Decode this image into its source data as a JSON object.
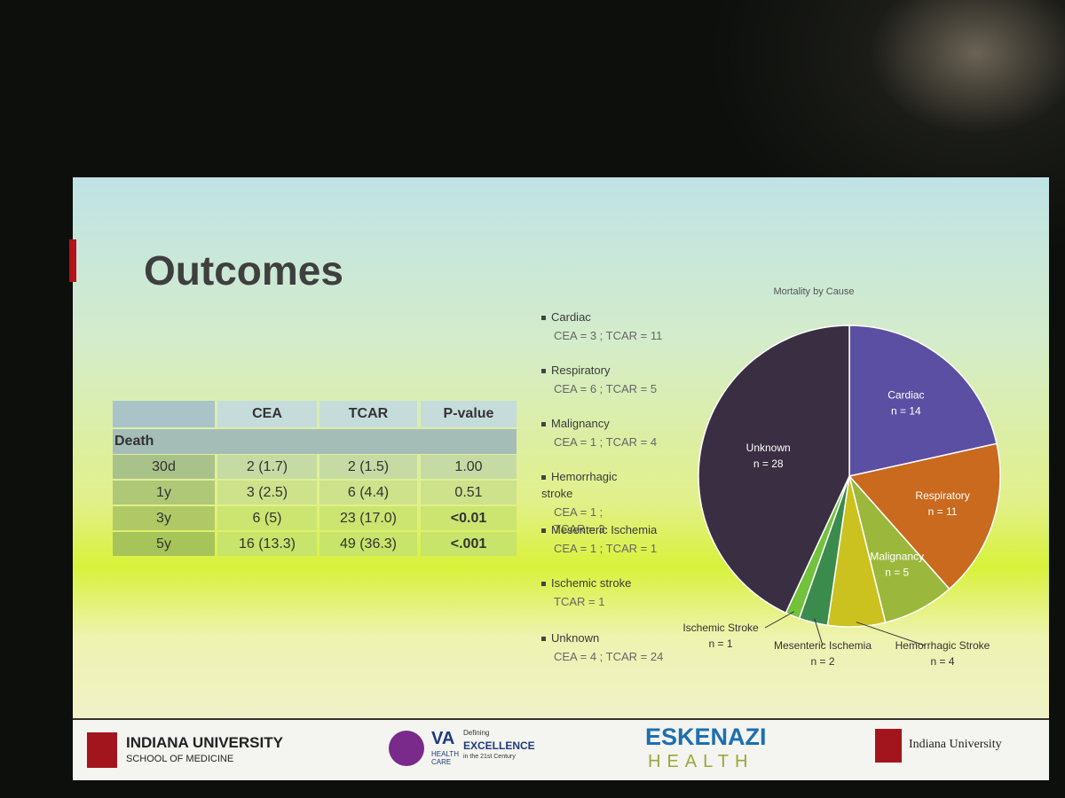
{
  "title": "Outcomes",
  "table": {
    "header": [
      "CEA",
      "TCAR",
      "P-value"
    ],
    "group": "Death",
    "rows": [
      [
        "30d",
        "2 (1.7)",
        "2 (1.5)",
        "1.00"
      ],
      [
        "1y",
        "3 (2.5)",
        "6 (4.4)",
        "0.51"
      ],
      [
        "3y",
        "6 (5)",
        "23 (17.0)",
        "<0.01"
      ],
      [
        "5y",
        "16 (13.3)",
        "49 (36.3)",
        "<.001"
      ]
    ]
  },
  "legend_notes": [
    {
      "name": "Cardiac",
      "detail": "CEA = 3 ; TCAR = 11"
    },
    {
      "name": "Respiratory",
      "detail": "CEA = 6 ; TCAR = 5"
    },
    {
      "name": "Malignancy",
      "detail": "CEA = 1 ; TCAR = 4"
    },
    {
      "name": "Hemorrhagic stroke",
      "detail": "CEA = 1 ; TCAR = 3"
    },
    {
      "name": "Mesenteric Ischemia",
      "detail": "CEA = 1 ; TCAR = 1"
    },
    {
      "name": "Ischemic stroke",
      "detail": "TCAR = 1"
    },
    {
      "name": "Unknown",
      "detail": "CEA = 4 ; TCAR = 24"
    }
  ],
  "chart_data": {
    "type": "pie",
    "title": "Mortality by Cause",
    "categories": [
      "Cardiac",
      "Respiratory",
      "Malignancy",
      "Hemorrhagic Stroke",
      "Mesenteric Ischemia",
      "Ischemic Stroke",
      "Unknown"
    ],
    "values": [
      14,
      11,
      5,
      4,
      2,
      1,
      28
    ],
    "value_labels": [
      "n = 14",
      "n = 11",
      "n = 5",
      "n = 4",
      "n = 2",
      "n = 1",
      "n = 28"
    ],
    "colors": [
      "#5b4fa3",
      "#c96a1f",
      "#9cb83c",
      "#cbc21f",
      "#3b8b4c",
      "#72c23c",
      "#3a2f42"
    ]
  },
  "footer": {
    "iu": "INDIANA UNIVERSITY",
    "iu_sub": "SCHOOL OF MEDICINE",
    "va": "VA",
    "va_sub": "HEALTH CARE",
    "def1": "Defining",
    "def2": "EXCELLENCE",
    "def3": "in the 21st Century",
    "esk": "ESKENAZI",
    "esk_sub": "HEALTH",
    "iu2": "Indiana University"
  }
}
